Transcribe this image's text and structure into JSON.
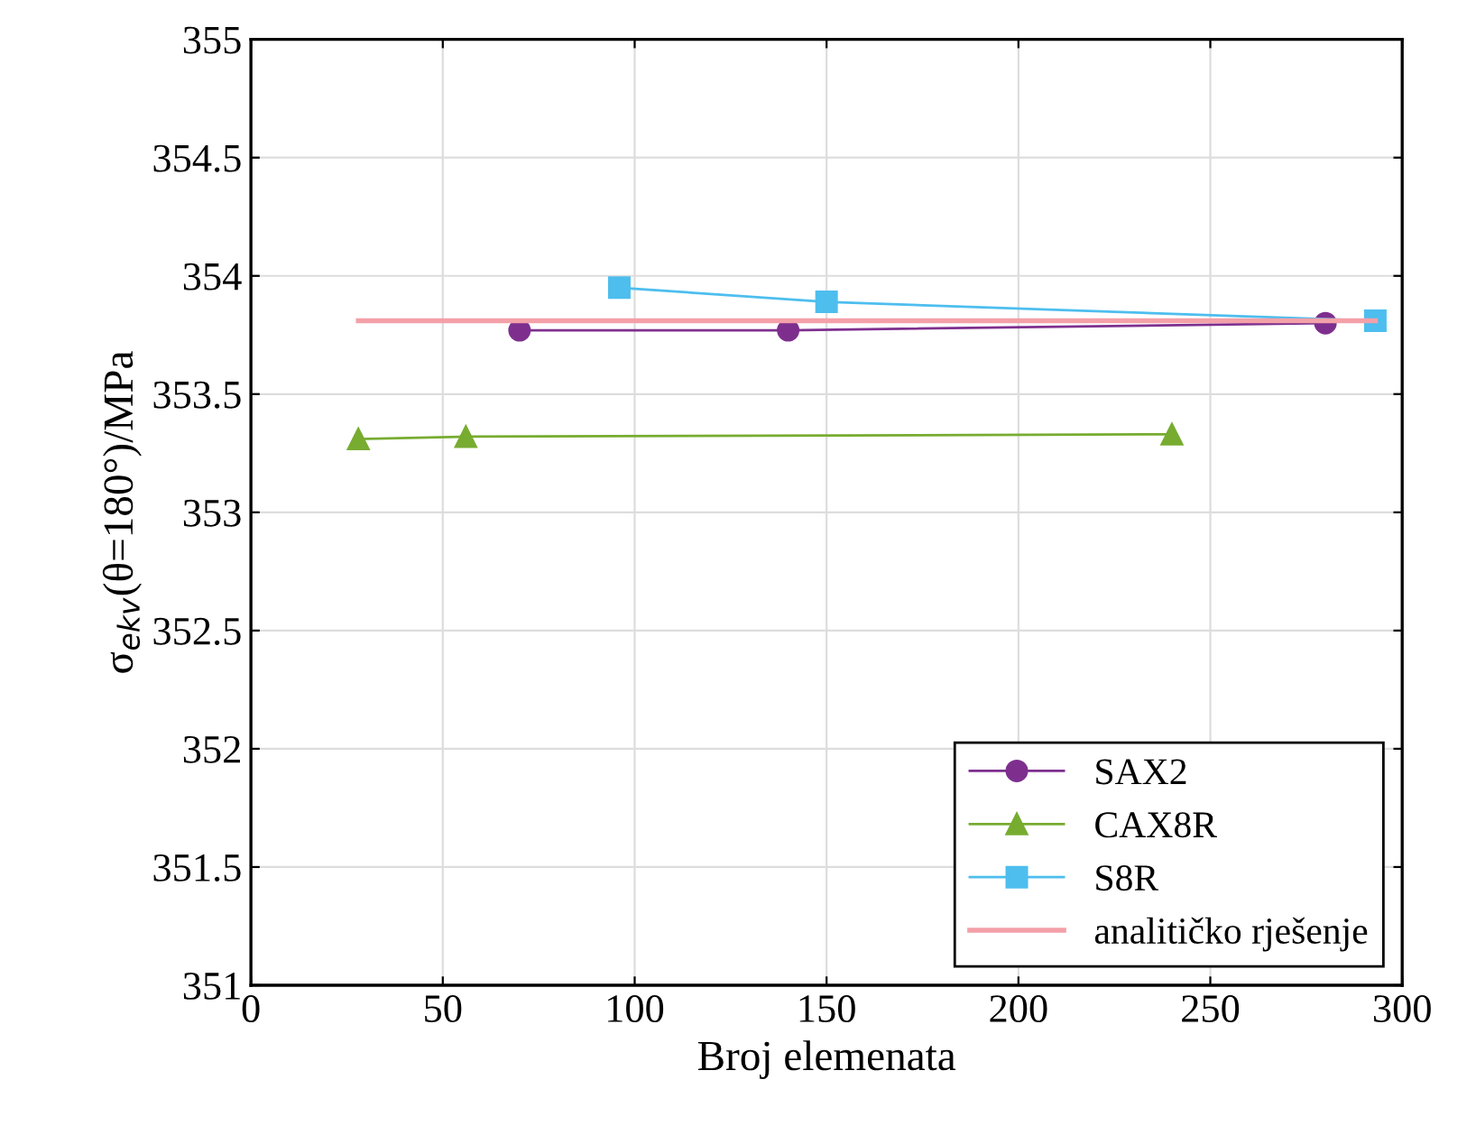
{
  "chart_data": {
    "type": "line",
    "xlabel": "Broj elemenata",
    "ylabel": "σ$_{ekv}$(θ=180°)/MPa",
    "xlim": [
      0,
      300
    ],
    "xticks": [
      0,
      50,
      100,
      150,
      200,
      250,
      300
    ],
    "ylim": [
      351,
      355
    ],
    "yticks": [
      351,
      351.5,
      352,
      352.5,
      353,
      353.5,
      354,
      354.5,
      355
    ],
    "grid": true,
    "legend": "bottom right",
    "series": [
      {
        "name": "SAX2",
        "color": "#7e2f8e",
        "marker": "circle",
        "x": [
          70,
          140,
          280
        ],
        "values": [
          353.77,
          353.77,
          353.8
        ]
      },
      {
        "name": "CAX8R",
        "color": "#77ac30",
        "marker": "triangle",
        "x": [
          28,
          56,
          240
        ],
        "values": [
          353.31,
          353.32,
          353.33
        ]
      },
      {
        "name": "S8R",
        "color": "#4dbeee",
        "marker": "square",
        "x": [
          96,
          150,
          293
        ],
        "values": [
          353.95,
          353.89,
          353.81
        ]
      },
      {
        "name": "analitičko rješenje",
        "color": "#f4a0a8",
        "marker": "none",
        "x": [
          28,
          293
        ],
        "values": [
          353.81,
          353.81
        ]
      }
    ]
  }
}
